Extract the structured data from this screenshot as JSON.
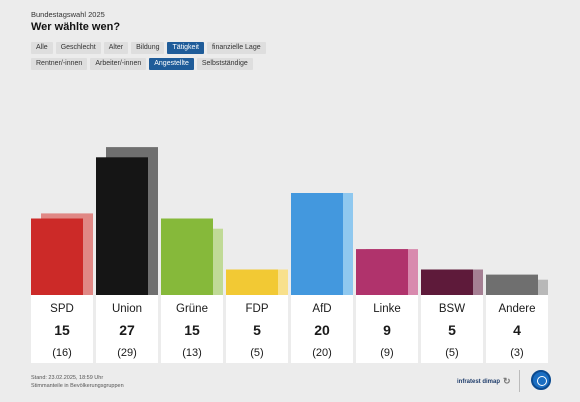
{
  "header": {
    "kicker": "Bundestagswahl 2025",
    "title": "Wer wählte wen?"
  },
  "filters_row1": [
    {
      "label": "Alle",
      "active": false
    },
    {
      "label": "Geschlecht",
      "active": false
    },
    {
      "label": "Alter",
      "active": false
    },
    {
      "label": "Bildung",
      "active": false
    },
    {
      "label": "Tätigkeit",
      "active": true
    },
    {
      "label": "finanzielle Lage",
      "active": false
    }
  ],
  "filters_row2": [
    {
      "label": "Rentner/-innen",
      "active": false
    },
    {
      "label": "Arbeiter/-innen",
      "active": false
    },
    {
      "label": "Angestellte",
      "active": true
    },
    {
      "label": "Selbstständige",
      "active": false
    }
  ],
  "footer": {
    "stand": "Stand: 23.02.2025, 18:59 Uhr",
    "note": "Stimmanteile in Bevölkerungsgruppen",
    "brand": "infratest dimap"
  },
  "chart_data": {
    "type": "bar",
    "categories": [
      "SPD",
      "Union",
      "Grüne",
      "FDP",
      "AfD",
      "Linke",
      "BSW",
      "Andere"
    ],
    "series": [
      {
        "values": [
          15,
          27,
          15,
          5,
          20,
          9,
          5,
          4
        ]
      },
      {
        "values": [
          16,
          29,
          13,
          5,
          20,
          9,
          5,
          3
        ]
      }
    ],
    "value_labels": [
      "15",
      "27",
      "15",
      "5",
      "20",
      "9",
      "5",
      "4"
    ],
    "previous_labels": [
      "(16)",
      "(29)",
      "(13)",
      "(5)",
      "(20)",
      "(9)",
      "(5)",
      "(3)"
    ],
    "colors": [
      "#cc2a28",
      "#151515",
      "#86b93a",
      "#f2c934",
      "#4398de",
      "#b0336c",
      "#5e1a3a",
      "#6f6f6f"
    ],
    "light_colors": [
      "#e08885",
      "#6f6f6f",
      "#c0da96",
      "#f8e08c",
      "#8fc8ef",
      "#d88aae",
      "#a57f93",
      "#b8b8b8"
    ],
    "ylim": [
      0,
      30
    ]
  }
}
